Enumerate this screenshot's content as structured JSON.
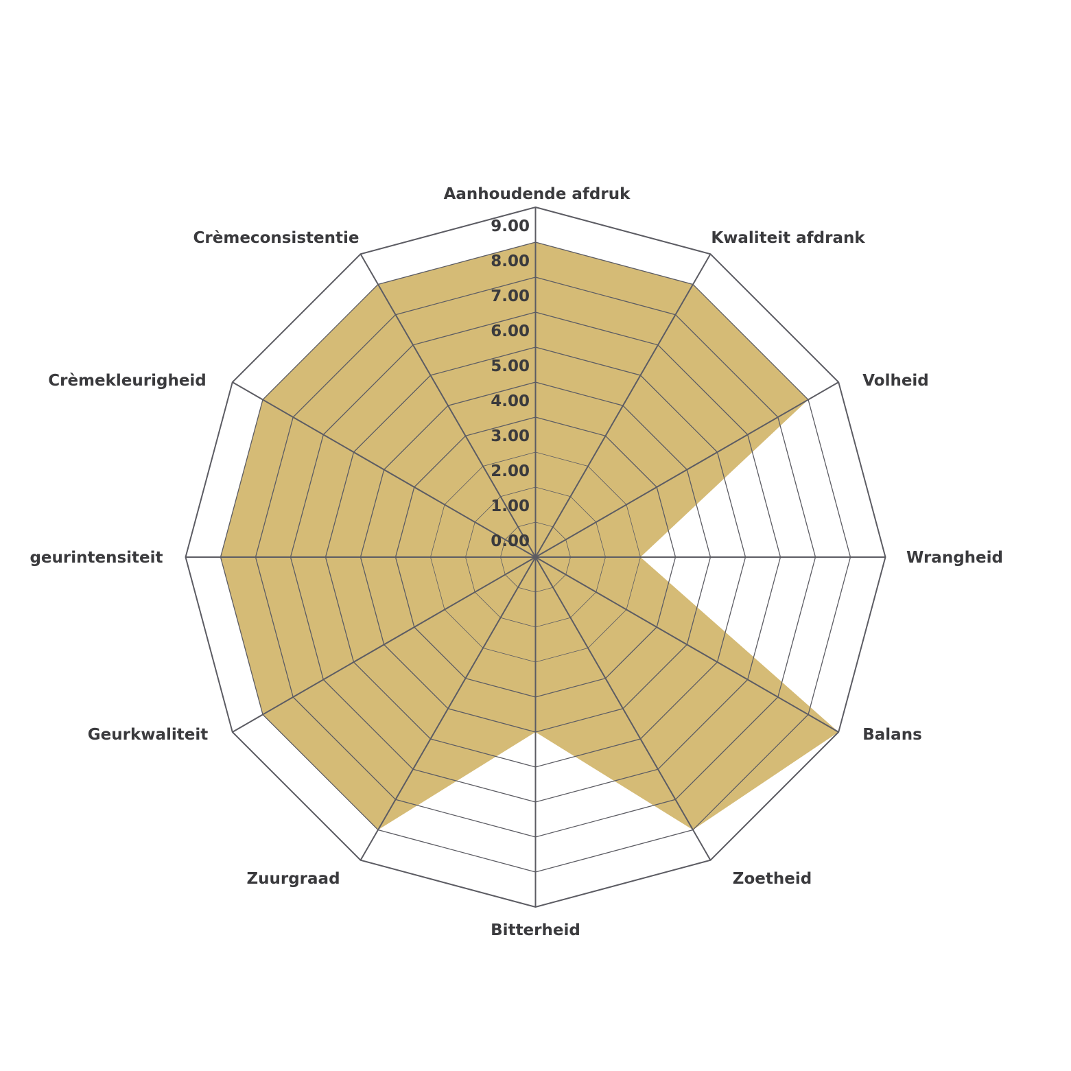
{
  "chart_data": {
    "type": "radar",
    "title": "",
    "axes": [
      "Aanhoudende afdruk",
      "Kwaliteit afdrank",
      "Volheid",
      "Wrangheid",
      "Balans",
      "Zoetheid",
      "Bitterheid",
      "Zuurgraad",
      "Geurkwaliteit",
      "geurintensiteit",
      "Crèmekleurigheid",
      "Crèmeconsistentie"
    ],
    "ticks": [
      "0.00",
      "1.00",
      "2.00",
      "3.00",
      "4.00",
      "5.00",
      "6.00",
      "7.00",
      "8.00",
      "9.00"
    ],
    "range": [
      0,
      10
    ],
    "series": [
      {
        "values": [
          9,
          9,
          9,
          3,
          10,
          9,
          5,
          9,
          9,
          9,
          9,
          9
        ],
        "color": "#d5bb76"
      }
    ],
    "grid": true,
    "grid_color": "#5c5c63"
  }
}
